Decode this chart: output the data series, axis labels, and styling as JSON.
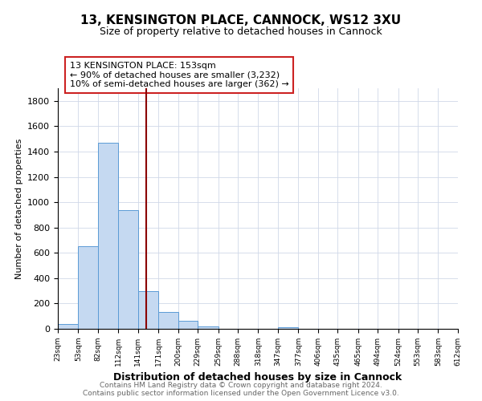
{
  "title": "13, KENSINGTON PLACE, CANNOCK, WS12 3XU",
  "subtitle": "Size of property relative to detached houses in Cannock",
  "xlabel": "Distribution of detached houses by size in Cannock",
  "ylabel": "Number of detached properties",
  "bar_edges": [
    23,
    53,
    82,
    112,
    141,
    171,
    200,
    229,
    259,
    288,
    318,
    347,
    377,
    406,
    435,
    465,
    494,
    524,
    553,
    583,
    612
  ],
  "bar_heights": [
    40,
    650,
    1470,
    935,
    295,
    130,
    65,
    20,
    0,
    0,
    0,
    15,
    0,
    0,
    0,
    0,
    0,
    0,
    0,
    0
  ],
  "bar_color": "#c5d9f1",
  "bar_edge_color": "#5b9bd5",
  "property_value": 153,
  "vline_color": "#8b0000",
  "annotation_box_text": "13 KENSINGTON PLACE: 153sqm\n← 90% of detached houses are smaller (3,232)\n10% of semi-detached houses are larger (362) →",
  "ylim": [
    0,
    1900
  ],
  "yticks": [
    0,
    200,
    400,
    600,
    800,
    1000,
    1200,
    1400,
    1600,
    1800
  ],
  "tick_labels": [
    "23sqm",
    "53sqm",
    "82sqm",
    "112sqm",
    "141sqm",
    "171sqm",
    "200sqm",
    "229sqm",
    "259sqm",
    "288sqm",
    "318sqm",
    "347sqm",
    "377sqm",
    "406sqm",
    "435sqm",
    "465sqm",
    "494sqm",
    "524sqm",
    "553sqm",
    "583sqm",
    "612sqm"
  ],
  "footer_line1": "Contains HM Land Registry data © Crown copyright and database right 2024.",
  "footer_line2": "Contains public sector information licensed under the Open Government Licence v3.0.",
  "background_color": "#ffffff",
  "grid_color": "#d0d8e8",
  "title_fontsize": 11,
  "subtitle_fontsize": 9,
  "ylabel_fontsize": 8,
  "xlabel_fontsize": 9,
  "footer_fontsize": 6.5,
  "annot_fontsize": 8
}
